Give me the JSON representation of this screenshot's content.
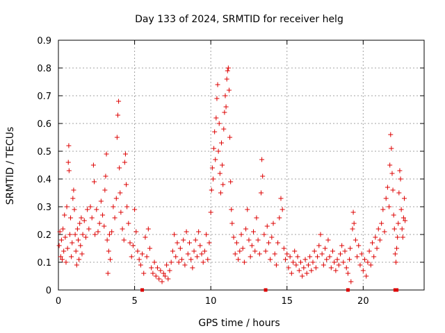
{
  "chart_data": {
    "type": "scatter",
    "title": "Day 133 of 2024, SRMTID for receiver helg",
    "xlabel": "GPS time / hours",
    "ylabel": "SRMTID / TECUs",
    "xlim": [
      0,
      24
    ],
    "ylim": [
      0,
      0.9
    ],
    "xticks": [
      0,
      5,
      10,
      15,
      20
    ],
    "yticks": [
      0,
      0.1,
      0.2,
      0.3,
      0.4,
      0.5,
      0.6,
      0.7,
      0.8,
      0.9
    ],
    "xtick_labels": [
      "0",
      "5",
      "10",
      "15",
      "20"
    ],
    "ytick_labels": [
      "0",
      "0.1",
      "0.2",
      "0.3",
      "0.4",
      "0.5",
      "0.6",
      "0.7",
      "0.8",
      "0.9"
    ],
    "grid": true,
    "marker": "plus",
    "color": "#dd0000",
    "series": [
      {
        "name": "SRMTID",
        "points": [
          [
            0.05,
            0.16
          ],
          [
            0.1,
            0.21
          ],
          [
            0.15,
            0.12
          ],
          [
            0.2,
            0.18
          ],
          [
            0.25,
            0.11
          ],
          [
            0.3,
            0.22
          ],
          [
            0.35,
            0.14
          ],
          [
            0.4,
            0.27
          ],
          [
            0.45,
            0.19
          ],
          [
            0.5,
            0.1
          ],
          [
            0.55,
            0.3
          ],
          [
            0.6,
            0.15
          ],
          [
            0.65,
            0.46
          ],
          [
            0.68,
            0.52
          ],
          [
            0.7,
            0.43
          ],
          [
            0.75,
            0.2
          ],
          [
            0.8,
            0.26
          ],
          [
            0.85,
            0.12
          ],
          [
            0.9,
            0.17
          ],
          [
            0.95,
            0.33
          ],
          [
            1.0,
            0.36
          ],
          [
            1.05,
            0.29
          ],
          [
            1.1,
            0.2
          ],
          [
            1.15,
            0.14
          ],
          [
            1.2,
            0.09
          ],
          [
            1.25,
            0.22
          ],
          [
            1.3,
            0.18
          ],
          [
            1.35,
            0.11
          ],
          [
            1.4,
            0.24
          ],
          [
            1.45,
            0.16
          ],
          [
            1.5,
            0.26
          ],
          [
            1.55,
            0.13
          ],
          [
            1.6,
            0.2
          ],
          [
            1.7,
            0.25
          ],
          [
            1.8,
            0.19
          ],
          [
            1.9,
            0.29
          ],
          [
            2.0,
            0.22
          ],
          [
            2.1,
            0.3
          ],
          [
            2.2,
            0.26
          ],
          [
            2.3,
            0.45
          ],
          [
            2.35,
            0.39
          ],
          [
            2.4,
            0.2
          ],
          [
            2.5,
            0.29
          ],
          [
            2.6,
            0.21
          ],
          [
            2.7,
            0.24
          ],
          [
            2.8,
            0.32
          ],
          [
            2.9,
            0.27
          ],
          [
            3.0,
            0.23
          ],
          [
            3.05,
            0.36
          ],
          [
            3.1,
            0.41
          ],
          [
            3.15,
            0.49
          ],
          [
            3.2,
            0.18
          ],
          [
            3.25,
            0.06
          ],
          [
            3.3,
            0.14
          ],
          [
            3.35,
            0.2
          ],
          [
            3.4,
            0.11
          ],
          [
            3.5,
            0.21
          ],
          [
            3.6,
            0.3
          ],
          [
            3.7,
            0.26
          ],
          [
            3.8,
            0.33
          ],
          [
            3.85,
            0.55
          ],
          [
            3.9,
            0.63
          ],
          [
            3.95,
            0.68
          ],
          [
            4.0,
            0.44
          ],
          [
            4.05,
            0.35
          ],
          [
            4.1,
            0.28
          ],
          [
            4.2,
            0.22
          ],
          [
            4.3,
            0.18
          ],
          [
            4.35,
            0.46
          ],
          [
            4.4,
            0.49
          ],
          [
            4.45,
            0.38
          ],
          [
            4.5,
            0.3
          ],
          [
            4.6,
            0.24
          ],
          [
            4.7,
            0.17
          ],
          [
            4.8,
            0.12
          ],
          [
            4.9,
            0.16
          ],
          [
            5.0,
            0.29
          ],
          [
            5.1,
            0.21
          ],
          [
            5.2,
            0.14
          ],
          [
            5.3,
            0.11
          ],
          [
            5.4,
            0.09
          ],
          [
            5.5,
            0.13
          ],
          [
            5.6,
            0.06
          ],
          [
            5.7,
            0.19
          ],
          [
            5.8,
            0.12
          ],
          [
            5.9,
            0.22
          ],
          [
            6.0,
            0.15
          ],
          [
            6.1,
            0.08
          ],
          [
            6.2,
            0.06
          ],
          [
            6.3,
            0.1
          ],
          [
            6.4,
            0.05
          ],
          [
            6.5,
            0.08
          ],
          [
            6.6,
            0.04
          ],
          [
            6.7,
            0.07
          ],
          [
            6.8,
            0.03
          ],
          [
            6.9,
            0.06
          ],
          [
            7.0,
            0.05
          ],
          [
            7.1,
            0.09
          ],
          [
            7.2,
            0.04
          ],
          [
            7.3,
            0.07
          ],
          [
            7.4,
            0.1
          ],
          [
            7.5,
            0.14
          ],
          [
            7.6,
            0.2
          ],
          [
            7.7,
            0.12
          ],
          [
            7.8,
            0.17
          ],
          [
            7.9,
            0.1
          ],
          [
            8.0,
            0.15
          ],
          [
            8.1,
            0.11
          ],
          [
            8.2,
            0.18
          ],
          [
            8.3,
            0.09
          ],
          [
            8.4,
            0.21
          ],
          [
            8.5,
            0.13
          ],
          [
            8.6,
            0.17
          ],
          [
            8.7,
            0.11
          ],
          [
            8.8,
            0.08
          ],
          [
            8.9,
            0.14
          ],
          [
            9.0,
            0.18
          ],
          [
            9.1,
            0.12
          ],
          [
            9.2,
            0.21
          ],
          [
            9.3,
            0.16
          ],
          [
            9.4,
            0.13
          ],
          [
            9.5,
            0.1
          ],
          [
            9.6,
            0.14
          ],
          [
            9.7,
            0.2
          ],
          [
            9.8,
            0.11
          ],
          [
            9.9,
            0.17
          ],
          [
            10.0,
            0.28
          ],
          [
            10.05,
            0.36
          ],
          [
            10.1,
            0.44
          ],
          [
            10.15,
            0.4
          ],
          [
            10.2,
            0.51
          ],
          [
            10.25,
            0.57
          ],
          [
            10.3,
            0.47
          ],
          [
            10.35,
            0.62
          ],
          [
            10.4,
            0.69
          ],
          [
            10.45,
            0.74
          ],
          [
            10.5,
            0.5
          ],
          [
            10.55,
            0.6
          ],
          [
            10.6,
            0.42
          ],
          [
            10.65,
            0.35
          ],
          [
            10.7,
            0.53
          ],
          [
            10.75,
            0.45
          ],
          [
            10.8,
            0.38
          ],
          [
            10.85,
            0.58
          ],
          [
            10.9,
            0.64
          ],
          [
            10.95,
            0.7
          ],
          [
            11.0,
            0.66
          ],
          [
            11.05,
            0.76
          ],
          [
            11.1,
            0.79
          ],
          [
            11.15,
            0.8
          ],
          [
            11.2,
            0.72
          ],
          [
            11.25,
            0.55
          ],
          [
            11.3,
            0.39
          ],
          [
            11.35,
            0.29
          ],
          [
            11.4,
            0.24
          ],
          [
            11.5,
            0.19
          ],
          [
            11.6,
            0.13
          ],
          [
            11.7,
            0.17
          ],
          [
            11.8,
            0.11
          ],
          [
            11.9,
            0.14
          ],
          [
            12.0,
            0.2
          ],
          [
            12.1,
            0.15
          ],
          [
            12.2,
            0.1
          ],
          [
            12.3,
            0.22
          ],
          [
            12.4,
            0.29
          ],
          [
            12.5,
            0.18
          ],
          [
            12.6,
            0.12
          ],
          [
            12.7,
            0.16
          ],
          [
            12.8,
            0.21
          ],
          [
            12.9,
            0.14
          ],
          [
            13.0,
            0.26
          ],
          [
            13.1,
            0.18
          ],
          [
            13.2,
            0.13
          ],
          [
            13.3,
            0.35
          ],
          [
            13.35,
            0.47
          ],
          [
            13.4,
            0.41
          ],
          [
            13.5,
            0.2
          ],
          [
            13.6,
            0.14
          ],
          [
            13.7,
            0.23
          ],
          [
            13.8,
            0.17
          ],
          [
            13.9,
            0.11
          ],
          [
            14.0,
            0.19
          ],
          [
            14.1,
            0.24
          ],
          [
            14.2,
            0.13
          ],
          [
            14.3,
            0.09
          ],
          [
            14.4,
            0.17
          ],
          [
            14.5,
            0.26
          ],
          [
            14.6,
            0.33
          ],
          [
            14.7,
            0.29
          ],
          [
            14.8,
            0.15
          ],
          [
            14.9,
            0.11
          ],
          [
            15.0,
            0.13
          ],
          [
            15.1,
            0.08
          ],
          [
            15.2,
            0.12
          ],
          [
            15.3,
            0.06
          ],
          [
            15.4,
            0.1
          ],
          [
            15.5,
            0.14
          ],
          [
            15.6,
            0.09
          ],
          [
            15.7,
            0.12
          ],
          [
            15.8,
            0.07
          ],
          [
            15.9,
            0.1
          ],
          [
            16.0,
            0.05
          ],
          [
            16.1,
            0.08
          ],
          [
            16.2,
            0.11
          ],
          [
            16.3,
            0.06
          ],
          [
            16.4,
            0.09
          ],
          [
            16.5,
            0.12
          ],
          [
            16.6,
            0.07
          ],
          [
            16.7,
            0.1
          ],
          [
            16.8,
            0.14
          ],
          [
            16.9,
            0.08
          ],
          [
            17.0,
            0.12
          ],
          [
            17.1,
            0.16
          ],
          [
            17.2,
            0.2
          ],
          [
            17.3,
            0.13
          ],
          [
            17.4,
            0.09
          ],
          [
            17.5,
            0.15
          ],
          [
            17.6,
            0.11
          ],
          [
            17.7,
            0.18
          ],
          [
            17.8,
            0.12
          ],
          [
            17.9,
            0.08
          ],
          [
            18.0,
            0.14
          ],
          [
            18.1,
            0.1
          ],
          [
            18.2,
            0.07
          ],
          [
            18.3,
            0.11
          ],
          [
            18.4,
            0.09
          ],
          [
            18.5,
            0.13
          ],
          [
            18.6,
            0.16
          ],
          [
            18.7,
            0.1
          ],
          [
            18.8,
            0.14
          ],
          [
            18.9,
            0.08
          ],
          [
            19.0,
            0.06
          ],
          [
            19.1,
            0.11
          ],
          [
            19.15,
            0.15
          ],
          [
            19.2,
            0.03
          ],
          [
            19.3,
            0.22
          ],
          [
            19.35,
            0.28
          ],
          [
            19.4,
            0.24
          ],
          [
            19.5,
            0.18
          ],
          [
            19.6,
            0.12
          ],
          [
            19.7,
            0.16
          ],
          [
            19.8,
            0.09
          ],
          [
            19.9,
            0.13
          ],
          [
            20.0,
            0.07
          ],
          [
            20.1,
            0.11
          ],
          [
            20.2,
            0.05
          ],
          [
            20.3,
            0.1
          ],
          [
            20.4,
            0.14
          ],
          [
            20.5,
            0.09
          ],
          [
            20.6,
            0.17
          ],
          [
            20.7,
            0.12
          ],
          [
            20.8,
            0.19
          ],
          [
            20.9,
            0.15
          ],
          [
            21.0,
            0.22
          ],
          [
            21.1,
            0.18
          ],
          [
            21.2,
            0.24
          ],
          [
            21.3,
            0.29
          ],
          [
            21.4,
            0.21
          ],
          [
            21.5,
            0.33
          ],
          [
            21.6,
            0.37
          ],
          [
            21.7,
            0.3
          ],
          [
            21.75,
            0.45
          ],
          [
            21.8,
            0.56
          ],
          [
            21.85,
            0.51
          ],
          [
            21.9,
            0.42
          ],
          [
            21.95,
            0.36
          ],
          [
            22.0,
            0.27
          ],
          [
            22.05,
            0.22
          ],
          [
            22.1,
            0.13
          ],
          [
            22.15,
            0.1
          ],
          [
            22.2,
            0.15
          ],
          [
            22.25,
            0.19
          ],
          [
            22.3,
            0.24
          ],
          [
            22.35,
            0.35
          ],
          [
            22.4,
            0.43
          ],
          [
            22.45,
            0.4
          ],
          [
            22.5,
            0.29
          ],
          [
            22.55,
            0.22
          ],
          [
            22.6,
            0.19
          ],
          [
            22.65,
            0.26
          ],
          [
            22.7,
            0.33
          ],
          [
            22.75,
            0.25
          ]
        ]
      }
    ],
    "bottom_markers_x": [
      5.5,
      13.6,
      19.0,
      22.1,
      22.2
    ]
  }
}
